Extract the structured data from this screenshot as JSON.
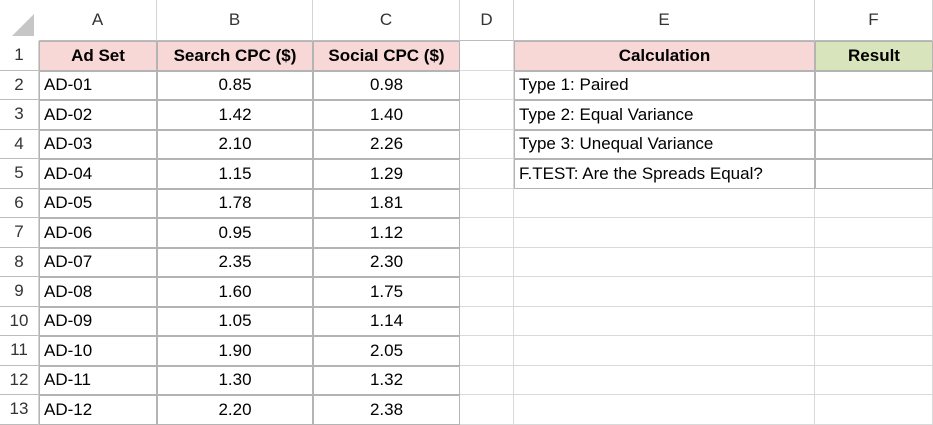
{
  "columns": [
    "A",
    "B",
    "C",
    "D",
    "E",
    "F"
  ],
  "row_numbers": [
    1,
    2,
    3,
    4,
    5,
    6,
    7,
    8,
    9,
    10,
    11,
    12,
    13
  ],
  "table": {
    "header": [
      "Ad Set",
      "Search CPC ($)",
      "Social CPC ($)"
    ],
    "rows": [
      [
        "AD-01",
        "0.85",
        "0.98"
      ],
      [
        "AD-02",
        "1.42",
        "1.40"
      ],
      [
        "AD-03",
        "2.10",
        "2.26"
      ],
      [
        "AD-04",
        "1.15",
        "1.29"
      ],
      [
        "AD-05",
        "1.78",
        "1.81"
      ],
      [
        "AD-06",
        "0.95",
        "1.12"
      ],
      [
        "AD-07",
        "2.35",
        "2.30"
      ],
      [
        "AD-08",
        "1.60",
        "1.75"
      ],
      [
        "AD-09",
        "1.05",
        "1.14"
      ],
      [
        "AD-10",
        "1.90",
        "2.05"
      ],
      [
        "AD-11",
        "1.30",
        "1.32"
      ],
      [
        "AD-12",
        "2.20",
        "2.38"
      ]
    ]
  },
  "calc": {
    "header": [
      "Calculation",
      "Result"
    ],
    "rows": [
      "Type 1: Paired",
      "Type 2: Equal Variance",
      "Type 3: Unequal Variance",
      "F.TEST: Are the Spreads Equal?"
    ]
  }
}
